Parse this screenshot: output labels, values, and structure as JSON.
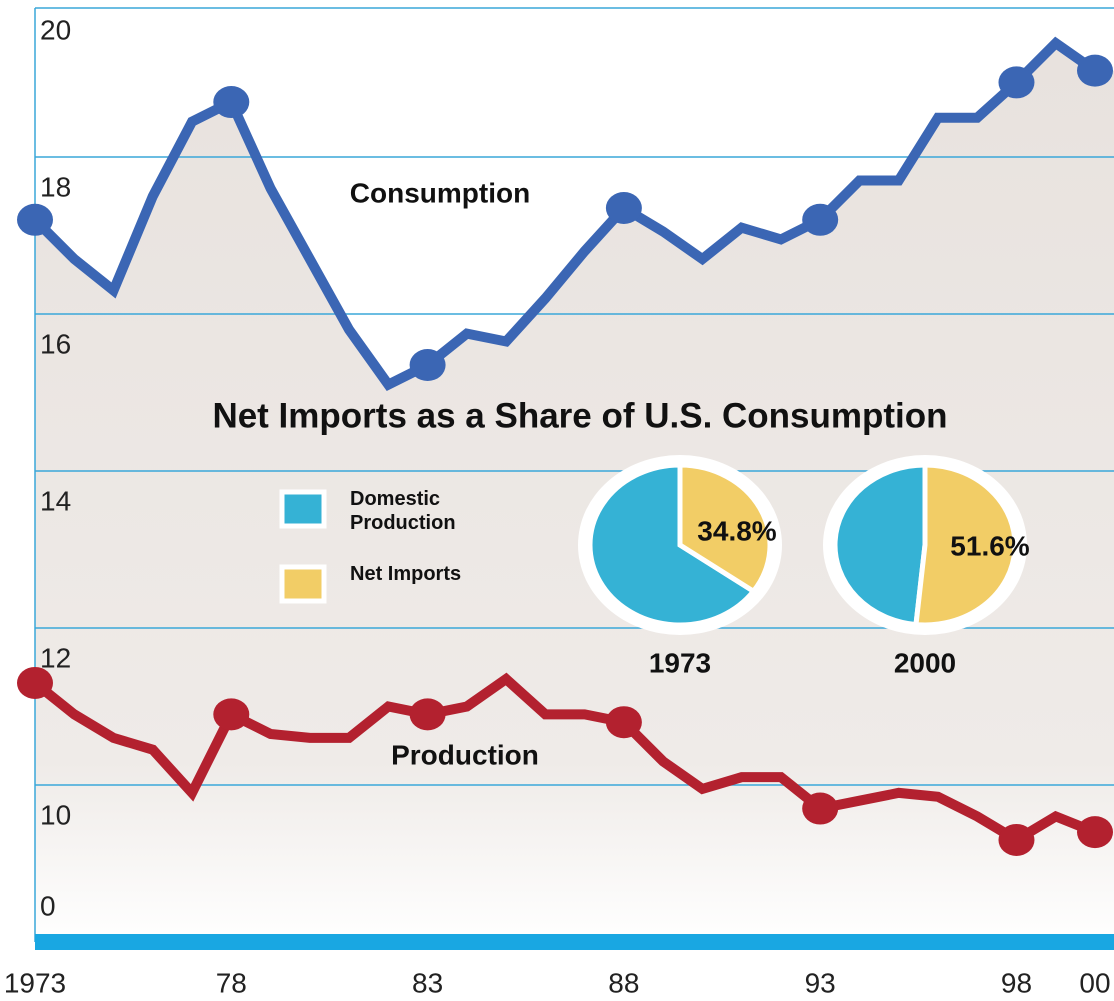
{
  "chart_data": [
    {
      "type": "line",
      "annotations": [
        "Net Imports as a Share of U.S. Consumption"
      ],
      "x": [
        1973,
        1974,
        1975,
        1976,
        1977,
        1978,
        1979,
        1980,
        1981,
        1982,
        1983,
        1984,
        1985,
        1986,
        1987,
        1988,
        1989,
        1990,
        1991,
        1992,
        1993,
        1994,
        1995,
        1996,
        1997,
        1998,
        1999,
        2000
      ],
      "series": [
        {
          "name": "Consumption",
          "color": "#3b66b4",
          "values": [
            17.2,
            16.7,
            16.3,
            17.5,
            18.45,
            18.7,
            17.6,
            16.7,
            15.8,
            15.1,
            15.35,
            15.75,
            15.65,
            16.2,
            16.8,
            17.35,
            17.05,
            16.7,
            17.1,
            16.95,
            17.2,
            17.7,
            17.7,
            18.5,
            18.5,
            18.95,
            19.45,
            19.1
          ]
        },
        {
          "name": "Production",
          "color": "#b3212f",
          "values": [
            11.3,
            10.9,
            10.6,
            10.45,
            9.9,
            10.9,
            10.65,
            10.6,
            10.6,
            11.0,
            10.9,
            11.0,
            11.35,
            10.9,
            10.9,
            10.8,
            10.3,
            9.95,
            10.1,
            10.1,
            9.7,
            9.8,
            9.9,
            9.85,
            9.6,
            9.3,
            9.6,
            9.4
          ]
        }
      ],
      "xlim": [
        1973,
        2000
      ],
      "xticks": [
        1973,
        {
          "value": 1978,
          "label": "78"
        },
        {
          "value": 1983,
          "label": "83"
        },
        {
          "value": 1988,
          "label": "88"
        },
        {
          "value": 1993,
          "label": "93"
        },
        {
          "value": 1998,
          "label": "98"
        },
        {
          "value": 2000,
          "label": "00"
        }
      ],
      "ylim": [
        8,
        20
      ],
      "yticks": [
        10,
        12,
        14,
        16,
        18,
        20
      ],
      "axis_break_label": "0",
      "grid": true
    },
    {
      "type": "pie",
      "title": "1973",
      "categories": [
        "Domestic Production",
        "Net Imports"
      ],
      "colors": [
        "#35b2d5",
        "#f2cd66"
      ],
      "values": [
        65.2,
        34.8
      ],
      "value_labels": [
        null,
        "34.8%"
      ]
    },
    {
      "type": "pie",
      "title": "2000",
      "categories": [
        "Domestic Production",
        "Net Imports"
      ],
      "colors": [
        "#35b2d5",
        "#f2cd66"
      ],
      "values": [
        48.4,
        51.6
      ],
      "value_labels": [
        null,
        "51.6%"
      ]
    }
  ]
}
